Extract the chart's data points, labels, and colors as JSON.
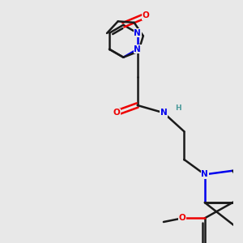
{
  "background_color": "#e8e8e8",
  "bond_color": "#1a1a1a",
  "N_color": "#0000ee",
  "O_color": "#ee0000",
  "H_color": "#4a9a9a",
  "bond_width": 1.8,
  "figsize": [
    3.0,
    3.0
  ],
  "dpi": 100,
  "xlim": [
    -2.5,
    3.5
  ],
  "ylim": [
    -4.0,
    2.5
  ]
}
